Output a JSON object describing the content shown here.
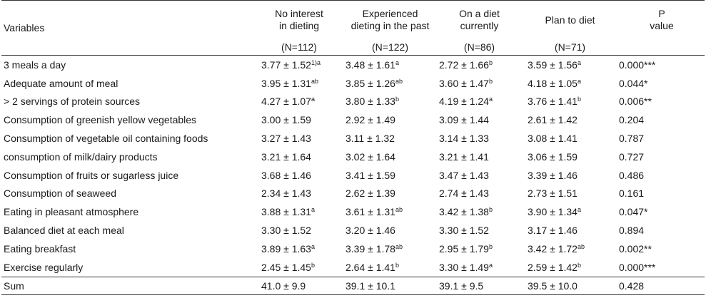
{
  "header": {
    "variables": "Variables",
    "groups": [
      {
        "line1": "No interest",
        "line2": "in dieting",
        "n": "(N=112)"
      },
      {
        "line1": "Experienced",
        "line2": "dieting in the past",
        "n": "(N=122)"
      },
      {
        "line1": "On a diet",
        "line2": "currently",
        "n": "(N=86)"
      },
      {
        "line1": "Plan to diet",
        "line2": "",
        "n": "(N=71)"
      }
    ],
    "p_line1": "P",
    "p_line2": "value"
  },
  "rows": [
    {
      "label": "3 meals a day",
      "c1": "3.77 ± 1.52",
      "s1": "1)a",
      "c2": "3.48 ± 1.61",
      "s2": "a",
      "c3": "2.72 ± 1.66",
      "s3": "b",
      "c4": "3.59 ± 1.56",
      "s4": "a",
      "p": "0.000***"
    },
    {
      "label": "Adequate amount of meal",
      "c1": "3.95 ± 1.31",
      "s1": "ab",
      "c2": "3.85 ± 1.26",
      "s2": "ab",
      "c3": "3.60 ± 1.47",
      "s3": "b",
      "c4": "4.18 ± 1.05",
      "s4": "a",
      "p": "0.044*"
    },
    {
      "label": "> 2 servings of protein sources",
      "c1": "4.27 ± 1.07",
      "s1": "a",
      "c2": "3.80 ± 1.33",
      "s2": "b",
      "c3": "4.19 ± 1.24",
      "s3": "a",
      "c4": "3.76 ± 1.41",
      "s4": "b",
      "p": "0.006**"
    },
    {
      "label": "Consumption of greenish yellow vegetables",
      "c1": "3.00 ± 1.59",
      "s1": "",
      "c2": "2.92 ± 1.49",
      "s2": "",
      "c3": "3.09 ± 1.44",
      "s3": "",
      "c4": "2.61 ± 1.42",
      "s4": "",
      "p": "0.204"
    },
    {
      "label": "Consumption of vegetable oil containing foods",
      "c1": "3.27 ± 1.43",
      "s1": "",
      "c2": "3.11 ± 1.32",
      "s2": "",
      "c3": "3.14 ± 1.33",
      "s3": "",
      "c4": "3.08 ± 1.41",
      "s4": "",
      "p": "0.787"
    },
    {
      "label": "consumption of milk/dairy products",
      "c1": "3.21 ± 1.64",
      "s1": "",
      "c2": "3.02 ± 1.64",
      "s2": "",
      "c3": "3.21 ± 1.41",
      "s3": "",
      "c4": "3.06 ± 1.59",
      "s4": "",
      "p": "0.727"
    },
    {
      "label": "Consumption of fruits or sugarless juice",
      "c1": "3.68 ± 1.46",
      "s1": "",
      "c2": "3.41 ± 1.59",
      "s2": "",
      "c3": "3.47 ± 1.43",
      "s3": "",
      "c4": "3.39 ± 1.46",
      "s4": "",
      "p": "0.486"
    },
    {
      "label": "Consumption of seaweed",
      "c1": "2.34 ± 1.43",
      "s1": "",
      "c2": "2.62 ± 1.39",
      "s2": "",
      "c3": "2.74 ± 1.43",
      "s3": "",
      "c4": "2.73 ± 1.51",
      "s4": "",
      "p": "0.161"
    },
    {
      "label": "Eating in pleasant atmosphere",
      "c1": "3.88 ± 1.31",
      "s1": "a",
      "c2": "3.61 ± 1.31",
      "s2": "ab",
      "c3": "3.42 ± 1.38",
      "s3": "b",
      "c4": "3.90 ± 1.34",
      "s4": "a",
      "p": "0.047*"
    },
    {
      "label": "Balanced diet at each meal",
      "c1": "3.30 ± 1.52",
      "s1": "",
      "c2": "3.20 ± 1.46",
      "s2": "",
      "c3": "3.30 ± 1.52",
      "s3": "",
      "c4": "3.17 ± 1.46",
      "s4": "",
      "p": "0.894"
    },
    {
      "label": "Eating breakfast",
      "c1": "3.89 ± 1.63",
      "s1": "a",
      "c2": "3.39 ± 1.78",
      "s2": "ab",
      "c3": "2.95 ± 1.79",
      "s3": "b",
      "c4": "3.42 ± 1.72",
      "s4": "ab",
      "p": "0.002**"
    },
    {
      "label": "Exercise regularly",
      "c1": "2.45 ± 1.45",
      "s1": "b",
      "c2": "2.64 ± 1.41",
      "s2": "b",
      "c3": "3.30 ± 1.49",
      "s3": "a",
      "c4": "2.59 ± 1.42",
      "s4": "b",
      "p": "0.000***"
    }
  ],
  "sum": {
    "label": "Sum",
    "c1": "41.0 ± 9.9",
    "c2": "39.1 ± 10.1",
    "c3": "39.1 ± 9.5",
    "c4": "39.5 ± 10.0",
    "p": "0.428"
  }
}
